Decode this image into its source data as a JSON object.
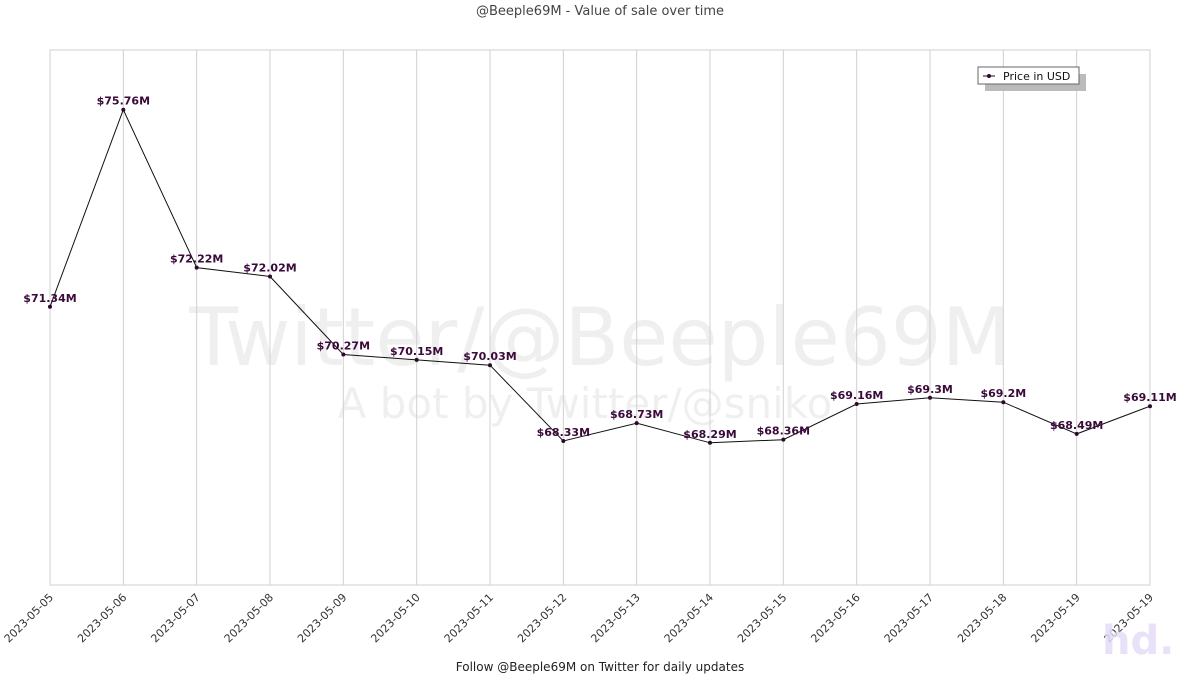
{
  "title": "@Beeple69M - Value of sale over time",
  "footer": "Follow @Beeple69M on Twitter for daily updates",
  "watermark": {
    "line1": "Twitter/@Beeple69M",
    "line2": "A bot by Twitter/@sniko"
  },
  "corner_logo": "hd.",
  "colors": {
    "line": "#111111",
    "marker": "#2a0a2a",
    "label": "#3a0a3a",
    "grid": "#d0d0d0"
  },
  "chart_data": {
    "type": "line",
    "title": "@Beeple69M - Value of sale over time",
    "x": [
      "2023-05-05",
      "2023-05-06",
      "2023-05-07",
      "2023-05-08",
      "2023-05-09",
      "2023-05-10",
      "2023-05-11",
      "2023-05-12",
      "2023-05-13",
      "2023-05-14",
      "2023-05-15",
      "2023-05-16",
      "2023-05-17",
      "2023-05-18",
      "2023-05-19",
      "2023-05-19"
    ],
    "series": [
      {
        "name": "Price in USD",
        "values": [
          71.34,
          75.76,
          72.22,
          72.02,
          70.27,
          70.15,
          70.03,
          68.33,
          68.73,
          68.29,
          68.36,
          69.16,
          69.3,
          69.2,
          68.49,
          69.11
        ],
        "labels": [
          "$71.34M",
          "$75.76M",
          "$72.22M",
          "$72.02M",
          "$70.27M",
          "$70.15M",
          "$70.03M",
          "$68.33M",
          "$68.73M",
          "$68.29M",
          "$68.36M",
          "$69.16M",
          "$69.3M",
          "$69.2M",
          "$68.49M",
          "$69.11M"
        ]
      }
    ],
    "ylim": [
      65.1,
      77.1
    ],
    "grid": "vertical",
    "legend": "top-right",
    "xlabel": "",
    "ylabel": ""
  }
}
